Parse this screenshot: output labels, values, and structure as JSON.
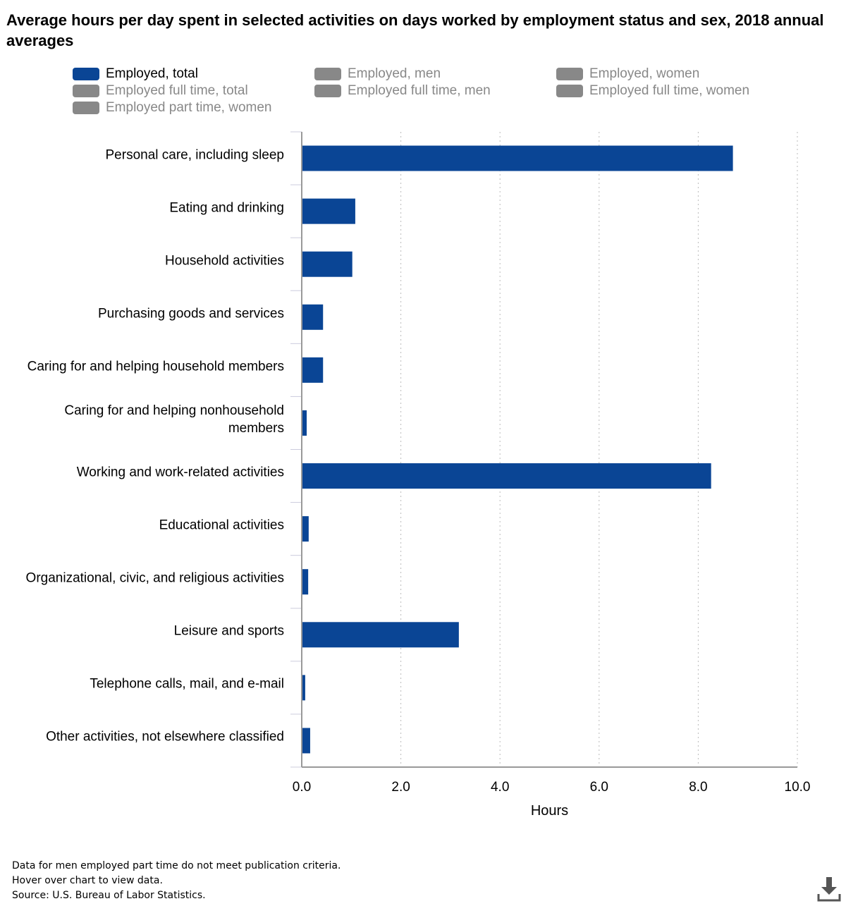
{
  "title": "Average hours per day spent in selected activities on days worked by employment status and sex, 2018 annual averages",
  "chart_data": {
    "type": "hbar",
    "categories": [
      "Personal care, including sleep",
      "Eating and drinking",
      "Household activities",
      "Purchasing goods and services",
      "Caring for and helping household members",
      "Caring for and helping nonhousehold members",
      "Working and work-related activities",
      "Educational activities",
      "Organizational, civic, and religious activities",
      "Leisure and sports",
      "Telephone calls, mail, and e-mail",
      "Other activities, not elsewhere classified"
    ],
    "series": [
      {
        "name": "Employed, total",
        "color": "#0a4595",
        "visible": true,
        "values": [
          8.7,
          1.08,
          1.02,
          0.43,
          0.43,
          0.1,
          8.26,
          0.14,
          0.13,
          3.17,
          0.07,
          0.17
        ]
      },
      {
        "name": "Employed, men",
        "color": "#888888",
        "visible": false
      },
      {
        "name": "Employed, women",
        "color": "#888888",
        "visible": false
      },
      {
        "name": "Employed full time, total",
        "color": "#888888",
        "visible": false
      },
      {
        "name": "Employed full time, men",
        "color": "#888888",
        "visible": false
      },
      {
        "name": "Employed full time, women",
        "color": "#888888",
        "visible": false
      },
      {
        "name": "Employed part time, women",
        "color": "#888888",
        "visible": false
      }
    ],
    "xlabel": "Hours",
    "xlim": [
      0,
      10
    ],
    "xticks": [
      {
        "value": 0,
        "label": "0.0"
      },
      {
        "value": 2,
        "label": "2.0"
      },
      {
        "value": 4,
        "label": "4.0"
      },
      {
        "value": 6,
        "label": "6.0"
      },
      {
        "value": 8,
        "label": "8.0"
      },
      {
        "value": 10,
        "label": "10.0"
      }
    ],
    "grid": true
  },
  "notes": [
    "Data for men employed part time do not meet publication criteria.",
    "Hover over chart to view data.",
    "Source: U.S. Bureau of Labor Statistics."
  ]
}
